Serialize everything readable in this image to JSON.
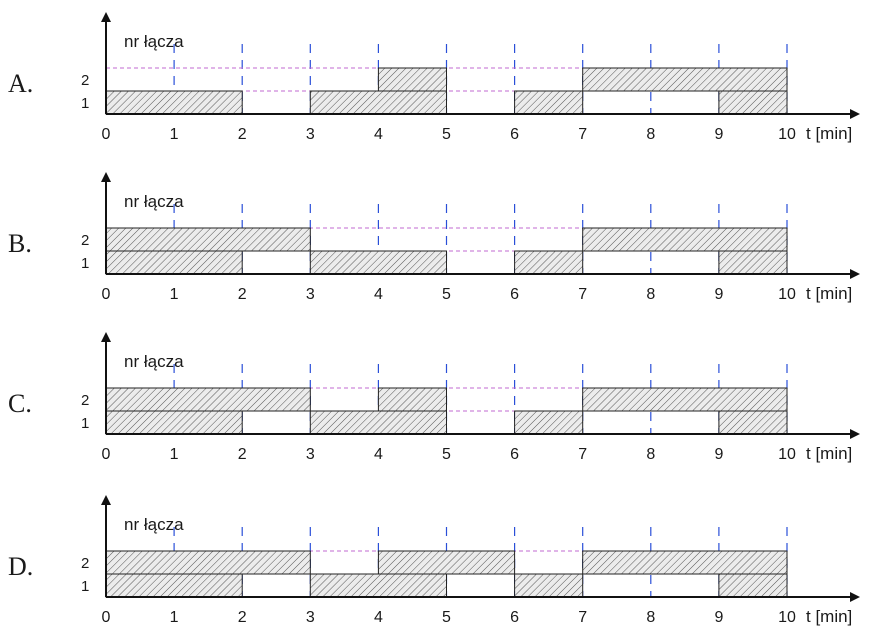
{
  "y_axis_label": "nr łącza",
  "x_axis_label": "t [min]",
  "lane_labels": [
    "1",
    "2"
  ],
  "x_ticks": [
    "0",
    "1",
    "2",
    "3",
    "4",
    "5",
    "6",
    "7",
    "8",
    "9",
    "10"
  ],
  "colors": {
    "axis": "#111111",
    "gridline": "#2a4fd8",
    "lane_top": "#c06ad0",
    "hatch_fill": "#ececec",
    "hatch_line": "#555555"
  },
  "options": [
    {
      "letter": "A.",
      "link1": [
        [
          0,
          2
        ],
        [
          3,
          5
        ],
        [
          6,
          7
        ],
        [
          9,
          10
        ]
      ],
      "link2": [
        [
          4,
          5
        ],
        [
          7,
          10
        ]
      ]
    },
    {
      "letter": "B.",
      "link1": [
        [
          0,
          2
        ],
        [
          3,
          5
        ],
        [
          6,
          7
        ],
        [
          9,
          10
        ]
      ],
      "link2": [
        [
          0,
          3
        ],
        [
          7,
          10
        ]
      ]
    },
    {
      "letter": "C.",
      "link1": [
        [
          0,
          2
        ],
        [
          3,
          5
        ],
        [
          6,
          7
        ],
        [
          9,
          10
        ]
      ],
      "link2": [
        [
          0,
          3
        ],
        [
          4,
          5
        ],
        [
          7,
          10
        ]
      ]
    },
    {
      "letter": "D.",
      "link1": [
        [
          0,
          2
        ],
        [
          3,
          5
        ],
        [
          6,
          7
        ],
        [
          9,
          10
        ]
      ],
      "link2": [
        [
          0,
          3
        ],
        [
          4,
          6
        ],
        [
          7,
          10
        ]
      ]
    }
  ]
}
